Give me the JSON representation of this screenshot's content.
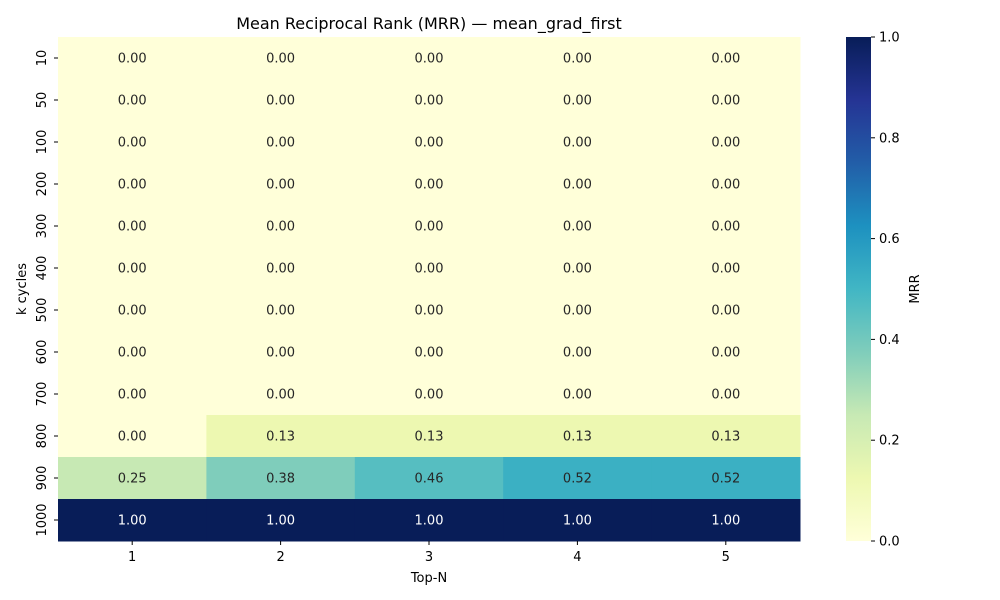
{
  "chart_data": {
    "type": "heatmap",
    "title": "Mean Reciprocal Rank (MRR) — mean_grad_first",
    "xlabel": "Top-N",
    "ylabel": "k cycles",
    "x_categories": [
      "1",
      "2",
      "3",
      "4",
      "5"
    ],
    "y_categories": [
      "10",
      "50",
      "100",
      "200",
      "300",
      "400",
      "500",
      "600",
      "700",
      "800",
      "900",
      "1000"
    ],
    "values": [
      [
        0.0,
        0.0,
        0.0,
        0.0,
        0.0
      ],
      [
        0.0,
        0.0,
        0.0,
        0.0,
        0.0
      ],
      [
        0.0,
        0.0,
        0.0,
        0.0,
        0.0
      ],
      [
        0.0,
        0.0,
        0.0,
        0.0,
        0.0
      ],
      [
        0.0,
        0.0,
        0.0,
        0.0,
        0.0
      ],
      [
        0.0,
        0.0,
        0.0,
        0.0,
        0.0
      ],
      [
        0.0,
        0.0,
        0.0,
        0.0,
        0.0
      ],
      [
        0.0,
        0.0,
        0.0,
        0.0,
        0.0
      ],
      [
        0.0,
        0.0,
        0.0,
        0.0,
        0.0
      ],
      [
        0.0,
        0.125,
        0.125,
        0.125,
        0.125
      ],
      [
        0.25,
        0.375,
        0.4583,
        0.5208,
        0.5208
      ],
      [
        1.0,
        1.0,
        1.0,
        1.0,
        1.0
      ]
    ],
    "value_format": "2 decimals",
    "colorbar": {
      "label": "MRR",
      "range": [
        0.0,
        1.0
      ],
      "ticks": [
        "0.0",
        "0.2",
        "0.4",
        "0.6",
        "0.8",
        "1.0"
      ],
      "colormap": "YlGnBu"
    }
  }
}
